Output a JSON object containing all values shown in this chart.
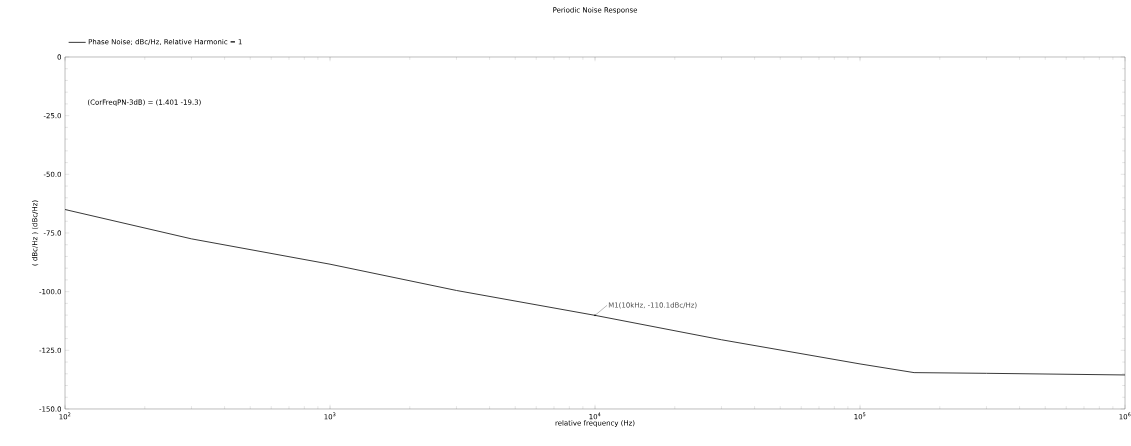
{
  "chart_data": {
    "type": "line",
    "title": "Periodic Noise Response",
    "xlabel": "relative frequency (Hz)",
    "ylabel": "( dBc/Hz ) (dBc/Hz)",
    "log": "x",
    "legend": "top left",
    "marker": "none",
    "line_style": "solid",
    "grid": false,
    "xlim": [
      100,
      1000000
    ],
    "ylim": [
      -150,
      0
    ],
    "xticks": [
      {
        "value": 100,
        "label": "10$^{2}$"
      },
      {
        "value": 1000,
        "label": "10$^{3}$"
      },
      {
        "value": 10000,
        "label": "10$^{4}$"
      },
      {
        "value": 100000,
        "label": "10$^{5}$"
      },
      {
        "value": 1000000,
        "label": "10$^{6}$"
      }
    ],
    "yticks": [
      {
        "value": -150,
        "label": "-150.0"
      },
      {
        "value": -125,
        "label": "-125.0"
      },
      {
        "value": -100,
        "label": "-100.0"
      },
      {
        "value": -75,
        "label": "-75.0"
      },
      {
        "value": -50,
        "label": "-50.0"
      },
      {
        "value": -25,
        "label": "-25.0"
      },
      0
    ],
    "series": [
      {
        "name": "Phase Noise; dBc/Hz, Relative Harmonic = 1",
        "color": "#222222",
        "x": [
          100,
          300,
          1000,
          3000,
          10000,
          30000,
          100000,
          160000,
          300000,
          1000000
        ],
        "values": [
          -65,
          -77.5,
          -88.3,
          -99.5,
          -110.1,
          -120.5,
          -130.8,
          -134.5,
          -134.8,
          -135.5
        ]
      }
    ],
    "annotations": [
      "(CorFreqPN-3dB) = (1.401 -19.3)",
      {
        "text": "M1(10kHz, -110.1dBc/Hz)",
        "x": 10000,
        "y": -110.1
      }
    ]
  }
}
